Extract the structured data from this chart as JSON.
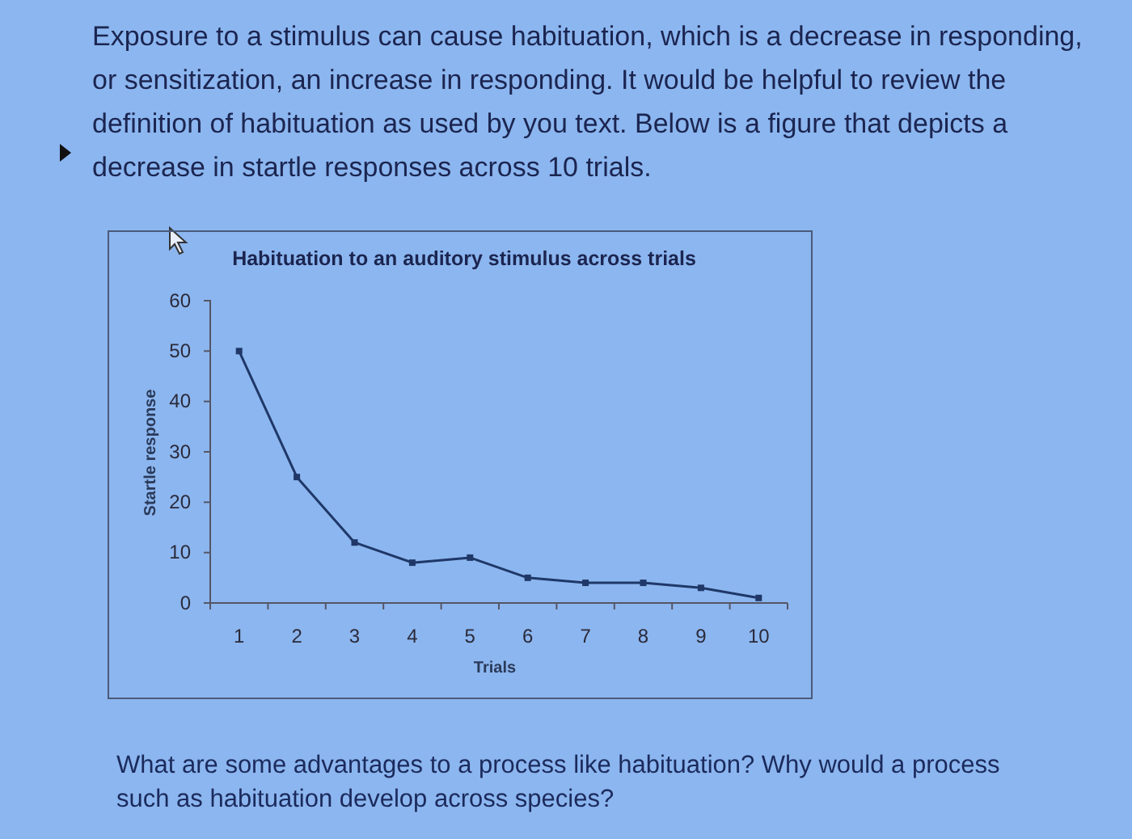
{
  "chart_data": {
    "type": "line",
    "title": "Habituation to an auditory stimulus across trials",
    "xlabel": "Trials",
    "ylabel": "Startle response",
    "categories": [
      "1",
      "2",
      "3",
      "4",
      "5",
      "6",
      "7",
      "8",
      "9",
      "10"
    ],
    "series": [
      {
        "color": "#1f3868",
        "values": [
          50,
          25,
          12,
          8,
          9,
          5,
          4,
          4,
          3,
          1
        ]
      }
    ],
    "ylim": [
      0,
      60
    ],
    "yticks": [
      0,
      10,
      20,
      30,
      40,
      50,
      60
    ],
    "marker": "square",
    "line_style": "solid",
    "annotations": [
      "Exposure to a stimulus can cause habituation, which is a decrease in responding, or sensitization, an increase in responding. It would be helpful to review the definition of habituation as used by you text. Below is a figure that depicts a decrease in startle responses across 10 trials.",
      "What are some advantages to a process like habituation? Why would a process such as habituation develop across species?"
    ]
  }
}
